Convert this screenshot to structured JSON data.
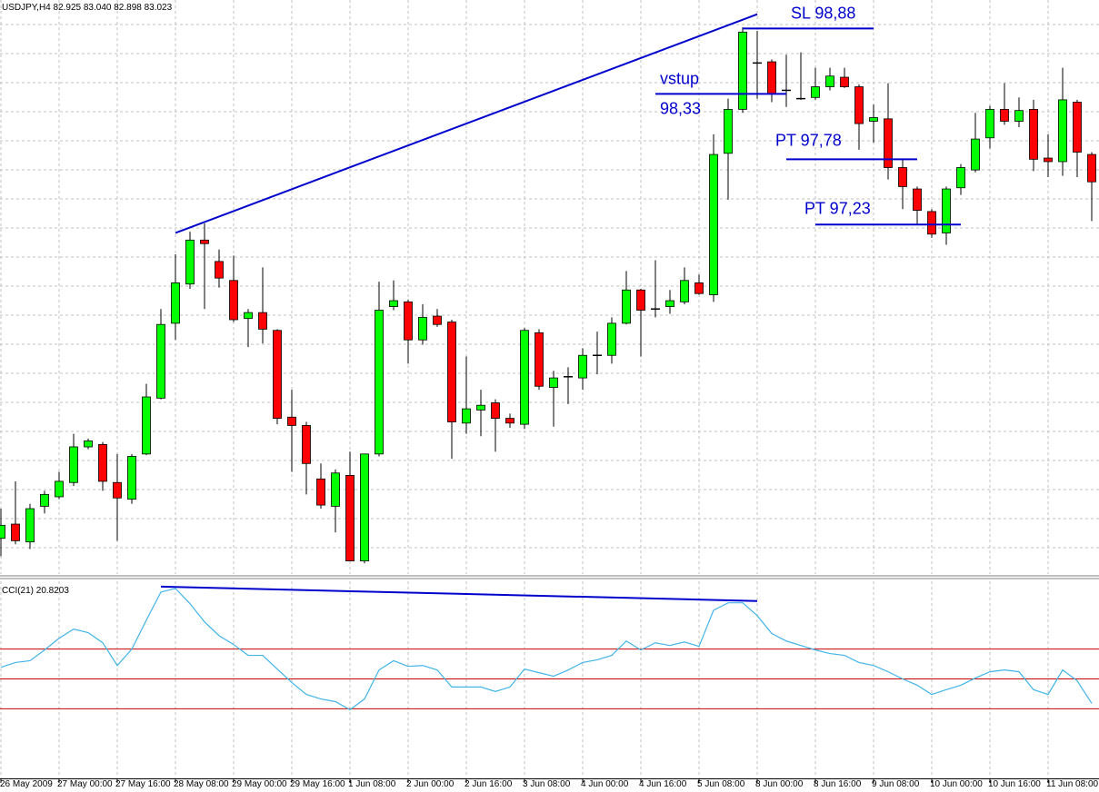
{
  "chart_data": [
    {
      "type": "candlestick",
      "title": "USDJPY,H4  82.925 83.040 82.898 83.023",
      "categories": [
        "26 May 2009",
        null,
        null,
        null,
        "27 May 00:00",
        null,
        null,
        null,
        "27 May 16:00",
        null,
        null,
        null,
        "28 May 08:00",
        null,
        null,
        null,
        "29 May 00:00",
        null,
        null,
        null,
        "29 May 16:00",
        null,
        null,
        null,
        "1 Jun 08:00",
        null,
        null,
        null,
        "2 Jun 00:00",
        null,
        null,
        null,
        "2 Jun 16:00",
        null,
        null,
        null,
        "3 Jun 08:00",
        null,
        null,
        null,
        "4 Jun 00:00",
        null,
        null,
        null,
        "4 Jun 16:00",
        null,
        null,
        null,
        "5 Jun 08:00",
        null,
        null,
        null,
        "8 Jun 00:00",
        null,
        null,
        null,
        "8 Jun 16:00",
        null,
        null,
        null,
        "9 Jun 08:00",
        null,
        null,
        null,
        "10 Jun 00:00",
        null,
        null,
        null,
        "10 Jun 16:00",
        null,
        null,
        null,
        "11 Jun 08:00",
        null,
        null,
        null
      ],
      "open": [
        94.59,
        94.71,
        94.56,
        94.86,
        94.94,
        95.06,
        95.36,
        95.38,
        95.06,
        94.92,
        95.3,
        95.77,
        96.4,
        96.73,
        97.1,
        96.92,
        96.76,
        96.44,
        96.49,
        96.34,
        95.61,
        95.54,
        95.09,
        94.86,
        95.12,
        94.4,
        95.3,
        96.54,
        96.58,
        96.26,
        96.46,
        96.41,
        95.56,
        95.67,
        95.73,
        95.6,
        95.55,
        96.32,
        95.86,
        95.95,
        95.94,
        96.13,
        96.13,
        96.4,
        96.68,
        96.52,
        96.54,
        96.58,
        96.74,
        96.64,
        97.83,
        98.2,
        98.59,
        98.6,
        98.36,
        98.29,
        98.3,
        98.39,
        98.47,
        98.39,
        98.1,
        98.12,
        97.71,
        97.53,
        97.34,
        97.16,
        97.54,
        97.69,
        97.96,
        98.2,
        98.1,
        98.2,
        97.79,
        97.76,
        98.26,
        97.82
      ],
      "high": [
        94.84,
        95.07,
        94.88,
        94.99,
        95.15,
        95.47,
        95.43,
        95.4,
        95.3,
        95.3,
        95.89,
        96.52,
        96.98,
        97.17,
        97.24,
        97.02,
        96.97,
        96.52,
        96.87,
        96.35,
        95.84,
        95.57,
        95.22,
        95.17,
        95.32,
        95.3,
        96.75,
        96.76,
        96.6,
        96.56,
        96.52,
        96.43,
        96.12,
        95.84,
        95.76,
        95.64,
        96.36,
        96.35,
        96.0,
        96.03,
        96.19,
        96.33,
        96.45,
        96.84,
        96.69,
        96.93,
        96.68,
        96.87,
        96.81,
        97.99,
        98.29,
        98.89,
        98.86,
        98.62,
        98.66,
        98.68,
        98.55,
        98.55,
        98.55,
        98.41,
        98.24,
        98.42,
        97.78,
        97.55,
        97.36,
        97.55,
        97.74,
        98.17,
        98.23,
        98.42,
        98.3,
        98.28,
        97.99,
        98.55,
        98.28,
        97.84
      ],
      "low": [
        94.44,
        94.54,
        94.5,
        94.8,
        94.92,
        95.03,
        95.34,
        94.99,
        94.57,
        94.88,
        95.29,
        95.76,
        96.26,
        96.69,
        96.52,
        96.7,
        96.41,
        96.2,
        96.23,
        95.55,
        95.15,
        94.96,
        94.84,
        94.64,
        94.4,
        94.38,
        95.28,
        96.51,
        96.06,
        96.22,
        96.37,
        95.26,
        95.47,
        95.45,
        95.32,
        95.52,
        95.51,
        95.84,
        95.53,
        95.72,
        95.84,
        95.97,
        96.06,
        96.39,
        96.12,
        96.45,
        96.48,
        96.56,
        96.64,
        96.58,
        97.44,
        98.17,
        98.29,
        98.26,
        98.22,
        98.28,
        98.28,
        98.36,
        98.38,
        97.86,
        97.92,
        97.61,
        97.36,
        97.23,
        97.12,
        97.06,
        97.48,
        97.67,
        97.87,
        98.07,
        98.05,
        97.68,
        97.63,
        97.64,
        97.63,
        97.26
      ],
      "close": [
        94.7,
        94.57,
        94.84,
        94.96,
        95.07,
        95.36,
        95.41,
        95.07,
        94.93,
        95.28,
        95.78,
        96.39,
        96.74,
        97.1,
        97.07,
        96.78,
        96.43,
        96.49,
        96.35,
        95.6,
        95.54,
        95.22,
        94.87,
        95.14,
        94.4,
        95.3,
        96.51,
        96.59,
        96.26,
        96.45,
        96.39,
        95.57,
        95.68,
        95.71,
        95.6,
        95.56,
        96.34,
        95.87,
        95.94,
        95.95,
        96.13,
        96.13,
        96.4,
        96.68,
        96.51,
        96.52,
        96.59,
        96.76,
        96.65,
        97.82,
        98.2,
        98.85,
        98.59,
        98.33,
        98.36,
        98.29,
        98.39,
        98.48,
        98.39,
        98.08,
        98.13,
        97.71,
        97.55,
        97.35,
        97.15,
        97.53,
        97.71,
        97.95,
        98.2,
        98.1,
        98.19,
        97.78,
        97.76,
        98.28,
        97.84,
        97.59
      ],
      "up_color": "#00ff00",
      "down_color": "#ff0000",
      "ylim": [
        94.29,
        99.12
      ],
      "grid": true,
      "annotation_color": "#0000cd",
      "trendlines": [
        {
          "x": [
            12,
            52
          ],
          "y": [
            97.16,
            99.0
          ]
        }
      ],
      "levels": [
        {
          "text": "SL 98,88",
          "value": 98.88,
          "x": [
            51,
            60
          ]
        },
        {
          "text": "vstup",
          "text2": "98,33",
          "value": 98.33,
          "x": [
            45,
            54
          ]
        },
        {
          "text": "PT 97,78",
          "value": 97.78,
          "x": [
            54,
            63
          ]
        },
        {
          "text": "PT 97,23",
          "value": 97.23,
          "x": [
            56,
            66
          ]
        }
      ]
    },
    {
      "type": "line",
      "title": "CCI(21) 20.8203",
      "values": [
        39,
        55,
        61,
        97,
        136,
        167,
        155,
        121,
        45,
        100,
        197,
        291,
        303,
        252,
        191,
        145,
        115,
        79,
        79,
        33,
        -12,
        -52,
        -67,
        -76,
        -103,
        -67,
        30,
        61,
        42,
        45,
        30,
        -27,
        -27,
        -27,
        -42,
        -27,
        33,
        21,
        9,
        30,
        55,
        64,
        79,
        127,
        97,
        121,
        112,
        124,
        109,
        230,
        255,
        255,
        212,
        152,
        127,
        112,
        97,
        85,
        79,
        55,
        45,
        24,
        0,
        -21,
        -52,
        -36,
        -21,
        3,
        24,
        30,
        24,
        -36,
        -52,
        30,
        -6,
        -82
      ],
      "color": "#40b4e6",
      "ylim": [
        -333,
        327
      ],
      "levels": [
        100,
        0,
        -100
      ],
      "level_color": "#c80000",
      "trendlines": [
        {
          "x": [
            11,
            52
          ],
          "y": [
            309,
            261
          ],
          "color": "#0000cd"
        }
      ]
    }
  ]
}
